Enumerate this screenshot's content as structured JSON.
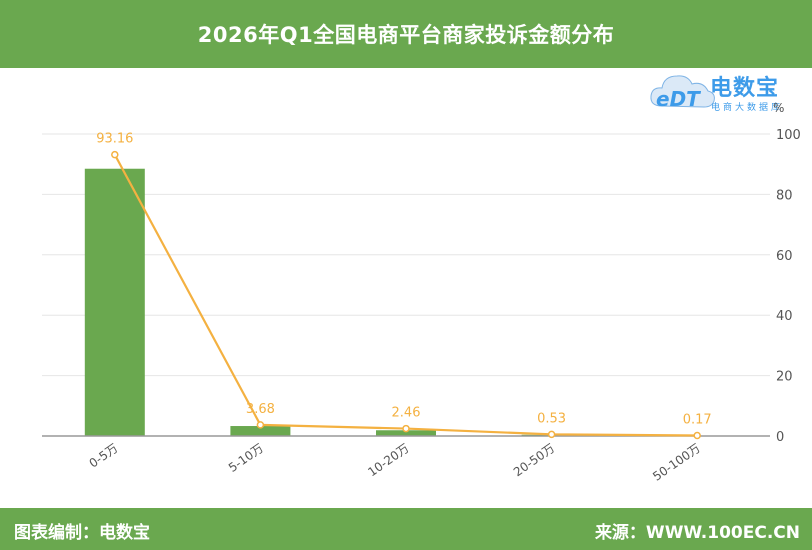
{
  "header": {
    "title": "2026年Q1全国电商平台商家投诉金额分布"
  },
  "logo": {
    "main": "电数宝",
    "sub": "电商大数据库",
    "mark": "eDT"
  },
  "footer": {
    "left": "图表编制：电数宝",
    "right": "来源：WWW.100EC.CN"
  },
  "colors": {
    "header_bg": "#6aa84f",
    "bar": "#6aa84f",
    "line": "#f4b141",
    "logo": "#3d9be9"
  },
  "chart_data": {
    "type": "bar",
    "title": "2026年Q1全国电商平台商家投诉金额分布",
    "categories": [
      "0-5万",
      "5-10万",
      "10-20万",
      "20-50万",
      "50-100万"
    ],
    "series": [
      {
        "type": "bar",
        "axis": "right",
        "values": [
          88.5,
          3.3,
          1.9,
          0.4,
          0.1
        ]
      },
      {
        "type": "line",
        "axis": "right",
        "values": [
          93.16,
          3.68,
          2.46,
          0.53,
          0.17
        ],
        "data_labels": [
          "93.16",
          "3.68",
          "2.46",
          "0.53",
          "0.17"
        ]
      }
    ],
    "y_axis": {
      "position": "right",
      "unit": "%",
      "ylim": [
        0,
        100
      ],
      "ticks": [
        "0",
        "20",
        "40",
        "60",
        "80",
        "100"
      ]
    },
    "grid": true,
    "legend": "none"
  }
}
